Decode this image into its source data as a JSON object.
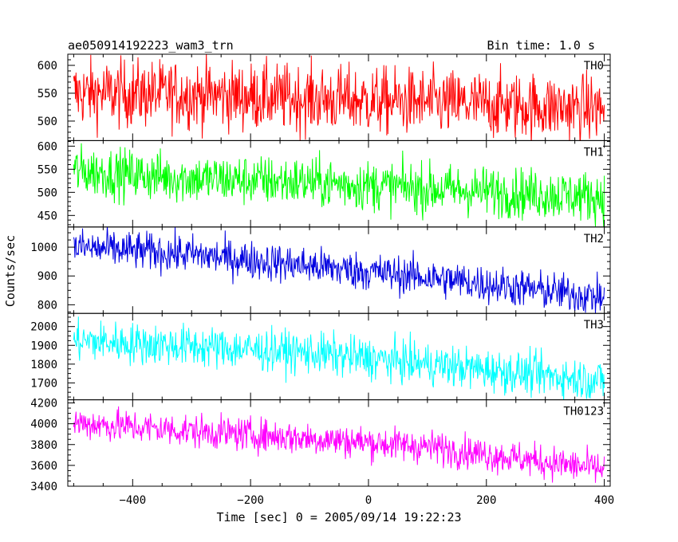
{
  "chart_data": {
    "type": "line",
    "title": "ae050914192223_wam3_trn",
    "subtitle": "Bin time: 1.0 s",
    "xlabel": "Time [sec] 0 = 2005/09/14 19:22:23",
    "ylabel": "Counts/sec",
    "xlim": [
      -510,
      410
    ],
    "xticks": [
      -400,
      -200,
      0,
      200,
      400
    ],
    "x": {
      "start": -500,
      "end": 400,
      "step": 1
    },
    "grid": false,
    "panels": [
      {
        "name": "TH0",
        "color": "#ff0000",
        "ylim": [
          465,
          620
        ],
        "yticks": [
          500,
          550,
          600
        ],
        "trend": [
          [
            -500,
            550
          ],
          [
            -300,
            548
          ],
          [
            -100,
            540
          ],
          [
            100,
            533
          ],
          [
            400,
            522
          ]
        ],
        "spread": 30
      },
      {
        "name": "TH1",
        "color": "#00ff00",
        "ylim": [
          425,
          612
        ],
        "yticks": [
          450,
          500,
          550,
          600
        ],
        "trend": [
          [
            -500,
            547
          ],
          [
            -300,
            530
          ],
          [
            -100,
            522
          ],
          [
            100,
            508
          ],
          [
            400,
            490
          ]
        ],
        "spread": 27
      },
      {
        "name": "TH2",
        "color": "#0000e0",
        "ylim": [
          770,
          1070
        ],
        "yticks": [
          800,
          900,
          1000
        ],
        "trend": [
          [
            -500,
            1000
          ],
          [
            -300,
            975
          ],
          [
            -100,
            935
          ],
          [
            100,
            895
          ],
          [
            400,
            825
          ]
        ],
        "spread": 33
      },
      {
        "name": "TH3",
        "color": "#00ffff",
        "ylim": [
          1610,
          2070
        ],
        "yticks": [
          1700,
          1800,
          1900,
          2000
        ],
        "trend": [
          [
            -500,
            1925
          ],
          [
            -300,
            1895
          ],
          [
            -100,
            1860
          ],
          [
            100,
            1800
          ],
          [
            400,
            1710
          ]
        ],
        "spread": 55
      },
      {
        "name": "TH0123",
        "color": "#ff00ff",
        "ylim": [
          3400,
          4230
        ],
        "yticks": [
          3400,
          3600,
          3800,
          4000,
          4200
        ],
        "trend": [
          [
            -500,
            4010
          ],
          [
            -300,
            3930
          ],
          [
            -100,
            3860
          ],
          [
            100,
            3780
          ],
          [
            400,
            3560
          ]
        ],
        "spread": 80
      }
    ]
  }
}
